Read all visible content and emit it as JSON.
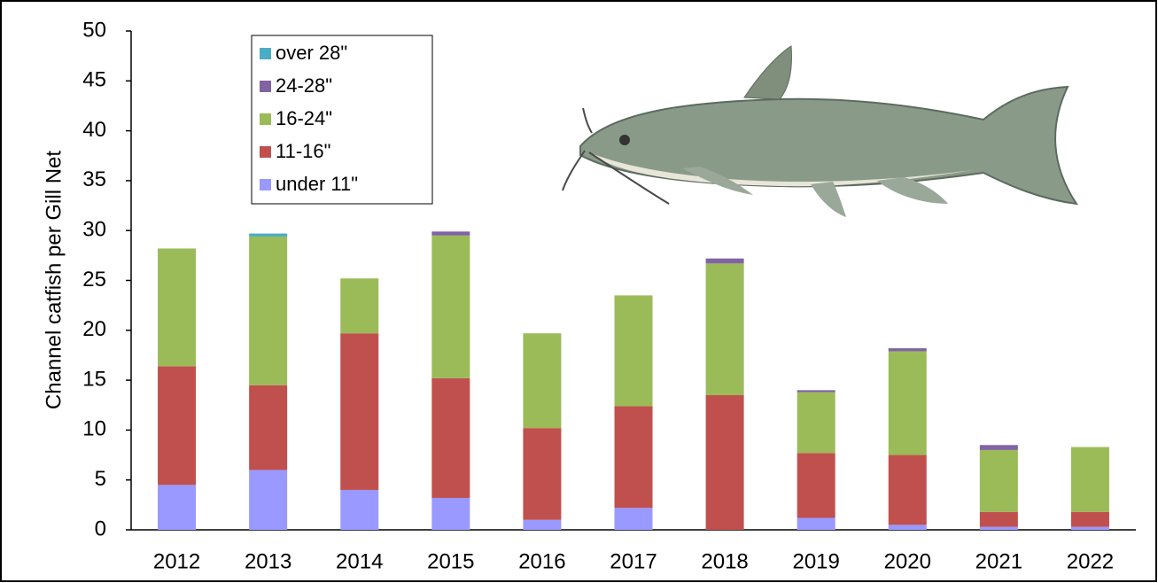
{
  "chart_data": {
    "type": "stacked_bar",
    "y_label": "Channel catfish per Gill Net",
    "categories": [
      "2012",
      "2013",
      "2014",
      "2015",
      "2016",
      "2017",
      "2018",
      "2019",
      "2020",
      "2021",
      "2022"
    ],
    "series": [
      {
        "name": "under 11\"",
        "color": "#9999ff",
        "values": [
          4.5,
          6.0,
          4.0,
          3.2,
          1.0,
          2.2,
          0,
          1.2,
          0.5,
          0.3,
          0.3
        ]
      },
      {
        "name": "11-16\"",
        "color": "#c0504d",
        "values": [
          11.9,
          8.5,
          15.7,
          12.0,
          9.2,
          10.2,
          13.5,
          6.5,
          7.0,
          1.5,
          1.5
        ]
      },
      {
        "name": "16-24\"",
        "color": "#9bbb59",
        "values": [
          11.8,
          14.9,
          5.5,
          14.3,
          9.5,
          11.1,
          13.2,
          6.1,
          10.4,
          6.2,
          6.5
        ]
      },
      {
        "name": "24-28\"",
        "color": "#8064a2",
        "values": [
          0,
          0,
          0,
          0.4,
          0,
          0,
          0.5,
          0.2,
          0.3,
          0.5,
          0
        ]
      },
      {
        "name": "over 28\"",
        "color": "#4bacc6",
        "values": [
          0,
          0.3,
          0,
          0,
          0,
          0,
          0,
          0,
          0,
          0,
          0
        ]
      }
    ],
    "ylim": [
      0,
      50
    ],
    "yticks": [
      0,
      5,
      10,
      15,
      20,
      25,
      30,
      35,
      40,
      45,
      50
    ],
    "grid": false,
    "legend": "upper left"
  }
}
